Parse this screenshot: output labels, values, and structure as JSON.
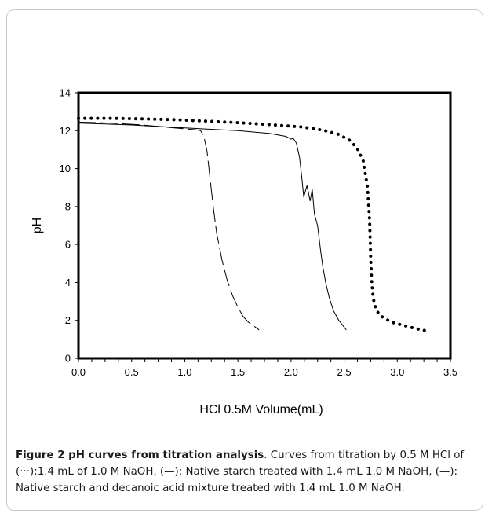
{
  "chart_data": {
    "type": "line",
    "xlabel": "HCl 0.5M Volume(mL)",
    "ylabel": "pH",
    "xlim": [
      0,
      3.5
    ],
    "ylim": [
      0,
      14
    ],
    "xticks": [
      "0.0",
      "0.5",
      "1.0",
      "1.5",
      "2.0",
      "2.5",
      "3.0",
      "3.5"
    ],
    "yticks": [
      "0",
      "2",
      "4",
      "6",
      "8",
      "10",
      "12",
      "14"
    ],
    "grid": false,
    "legend": "none",
    "series": [
      {
        "style": "dotted",
        "color": "#000000",
        "x": [
          0,
          0.3,
          0.6,
          0.9,
          1.2,
          1.5,
          1.8,
          2.1,
          2.3,
          2.45,
          2.55,
          2.62,
          2.68,
          2.72,
          2.74,
          2.75,
          2.76,
          2.77,
          2.78,
          2.8,
          2.83,
          2.88,
          2.95,
          3.05,
          3.15,
          3.27
        ],
        "y": [
          12.65,
          12.65,
          12.62,
          12.58,
          12.5,
          12.42,
          12.32,
          12.2,
          12.03,
          11.8,
          11.5,
          11.1,
          10.4,
          9.0,
          7.2,
          5.3,
          4.0,
          3.4,
          3.0,
          2.6,
          2.3,
          2.1,
          1.9,
          1.75,
          1.6,
          1.45
        ]
      },
      {
        "style": "solid",
        "color": "#000000",
        "x": [
          0,
          0.5,
          1.0,
          1.5,
          1.8,
          1.95,
          2.0,
          2.02,
          2.05,
          2.08,
          2.1,
          2.12,
          2.15,
          2.18,
          2.2,
          2.22,
          2.25,
          2.28,
          2.3,
          2.33,
          2.36,
          2.4,
          2.45,
          2.52
        ],
        "y": [
          12.4,
          12.3,
          12.15,
          12.0,
          11.85,
          11.7,
          11.55,
          11.6,
          11.35,
          10.6,
          9.6,
          8.5,
          9.1,
          8.3,
          8.9,
          7.6,
          7.0,
          5.6,
          4.8,
          3.9,
          3.2,
          2.5,
          2.0,
          1.5
        ]
      },
      {
        "style": "dashed",
        "color": "#000000",
        "x": [
          0,
          0.3,
          0.6,
          0.9,
          1.1,
          1.15,
          1.18,
          1.21,
          1.24,
          1.27,
          1.3,
          1.35,
          1.4,
          1.45,
          1.5,
          1.55,
          1.6,
          1.65,
          1.7
        ],
        "y": [
          12.45,
          12.4,
          12.3,
          12.15,
          12.05,
          12.0,
          11.7,
          10.9,
          9.4,
          7.9,
          6.6,
          5.2,
          4.1,
          3.3,
          2.7,
          2.2,
          1.9,
          1.7,
          1.5
        ]
      }
    ]
  },
  "caption": {
    "title": "Figure 2 pH curves from titration analysis",
    "body": ". Curves from titration by 0.5 M HCl of (···):1.4 mL of 1.0 M NaOH, (—): Native starch treated with 1.4 mL 1.0 M NaOH, (—): Native starch and decanoic acid mixture treated with 1.4 mL 1.0 M NaOH."
  }
}
